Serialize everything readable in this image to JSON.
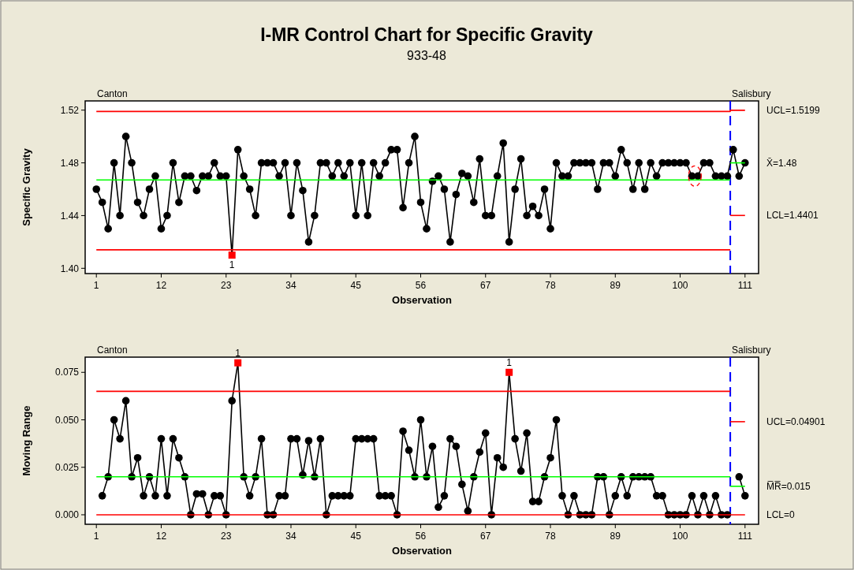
{
  "chart_data": [
    {
      "type": "line",
      "title": "I-MR Control Chart for Specific Gravity",
      "subtitle": "933-48",
      "xlabel": "Observation",
      "ylabel": "Specific Gravity",
      "marker": "circle",
      "line_style": "solid",
      "xlim": [
        -0.9,
        113.3
      ],
      "xticks": [
        1,
        12,
        23,
        34,
        45,
        56,
        67,
        78,
        89,
        100,
        111
      ],
      "ylim": [
        1.396,
        1.527
      ],
      "yticks": [
        {
          "value": 1.4,
          "label": "1.40"
        },
        {
          "value": 1.44,
          "label": "1.44"
        },
        {
          "value": 1.48,
          "label": "1.48"
        },
        {
          "value": 1.52,
          "label": "1.52"
        }
      ],
      "x": [
        1,
        2,
        3,
        4,
        5,
        6,
        7,
        8,
        9,
        10,
        11,
        12,
        13,
        14,
        15,
        16,
        17,
        18,
        19,
        20,
        21,
        22,
        23,
        24,
        25,
        26,
        27,
        28,
        29,
        30,
        31,
        32,
        33,
        34,
        35,
        36,
        37,
        38,
        39,
        40,
        41,
        42,
        43,
        44,
        45,
        46,
        47,
        48,
        49,
        50,
        51,
        52,
        53,
        54,
        55,
        56,
        57,
        58,
        59,
        60,
        61,
        62,
        63,
        64,
        65,
        66,
        67,
        68,
        69,
        70,
        71,
        72,
        73,
        74,
        75,
        76,
        77,
        78,
        79,
        80,
        81,
        82,
        83,
        84,
        85,
        86,
        87,
        88,
        89,
        90,
        91,
        92,
        93,
        94,
        95,
        96,
        97,
        98,
        99,
        100,
        101,
        102,
        103,
        104,
        105,
        106,
        107,
        108,
        109,
        110,
        111
      ],
      "series": [
        {
          "color": "#000000",
          "values": [
            1.46,
            1.45,
            1.43,
            1.48,
            1.44,
            1.5,
            1.48,
            1.45,
            1.44,
            1.46,
            1.47,
            1.43,
            1.44,
            1.48,
            1.45,
            1.47,
            1.47,
            1.459,
            1.47,
            1.47,
            1.48,
            1.47,
            1.47,
            1.41,
            1.49,
            1.47,
            1.46,
            1.44,
            1.48,
            1.48,
            1.48,
            1.47,
            1.48,
            1.44,
            1.48,
            1.459,
            1.42,
            1.44,
            1.48,
            1.48,
            1.47,
            1.48,
            1.47,
            1.48,
            1.44,
            1.48,
            1.44,
            1.48,
            1.47,
            1.48,
            1.49,
            1.49,
            1.446,
            1.48,
            1.5,
            1.45,
            1.43,
            1.466,
            1.47,
            1.46,
            1.42,
            1.456,
            1.472,
            1.47,
            1.45,
            1.483,
            1.44,
            1.44,
            1.47,
            1.495,
            1.42,
            1.46,
            1.483,
            1.44,
            1.447,
            1.44,
            1.46,
            1.43,
            1.48,
            1.47,
            1.47,
            1.48,
            1.48,
            1.48,
            1.48,
            1.46,
            1.48,
            1.48,
            1.47,
            1.49,
            1.48,
            1.46,
            1.48,
            1.46,
            1.48,
            1.47,
            1.48,
            1.48,
            1.48,
            1.48,
            1.48,
            1.47,
            1.47,
            1.48,
            1.48,
            1.47,
            1.47,
            1.47,
            1.49,
            1.47,
            1.48
          ]
        },
        {
          "type": "scatter",
          "marker": "square",
          "color": "#ff0000",
          "x": [
            24
          ],
          "values": [
            1.41
          ]
        },
        {
          "marker": "none",
          "color": "#00ff00",
          "x": [
            1,
            108.5
          ],
          "values": [
            1.467,
            1.467
          ]
        },
        {
          "marker": "none",
          "color": "#ff0000",
          "x": [
            1,
            108.5
          ],
          "values": [
            1.414,
            1.414
          ]
        },
        {
          "name": "UCL=1.5199",
          "marker": "none",
          "color": "#ff0000",
          "x": [
            1,
            108.5,
            108.5,
            111
          ],
          "values": [
            1.519,
            1.519,
            1.5199,
            1.5199
          ]
        },
        {
          "name": "X̄=1.48",
          "marker": "none",
          "color": "#00ff00",
          "x": [
            108.5,
            111
          ],
          "values": [
            1.48,
            1.48
          ]
        },
        {
          "name": "LCL=1.4401",
          "marker": "none",
          "color": "#ff0000",
          "x": [
            108.5,
            111
          ],
          "values": [
            1.4401,
            1.4401
          ]
        }
      ],
      "ref_lines": [
        {
          "axis": "x",
          "value": 108.5,
          "color": "#0000ff",
          "line_style": "dashed"
        }
      ],
      "annotations": [
        "Canton",
        "Salisbury",
        {
          "text": "1",
          "x": 24,
          "y": 1.41
        }
      ]
    },
    {
      "type": "line",
      "xlabel": "Observation",
      "ylabel": "Moving Range",
      "marker": "circle",
      "line_style": "solid",
      "xlim": [
        -0.9,
        113.3
      ],
      "xticks": [
        1,
        12,
        23,
        34,
        45,
        56,
        67,
        78,
        89,
        100,
        111
      ],
      "ylim": [
        -0.005,
        0.083
      ],
      "yticks": [
        {
          "value": 0,
          "label": "0.000"
        },
        {
          "value": 0.025,
          "label": "0.025"
        },
        {
          "value": 0.05,
          "label": "0.050"
        },
        {
          "value": 0.075,
          "label": "0.075"
        }
      ],
      "series": [
        {
          "color": "#000000",
          "x": [
            2,
            3,
            4,
            5,
            6,
            7,
            8,
            9,
            10,
            11,
            12,
            13,
            14,
            15,
            16,
            17,
            18,
            19,
            20,
            21,
            22,
            23,
            24,
            25,
            26,
            27,
            28,
            29,
            30,
            31,
            32,
            33,
            34,
            35,
            36,
            37,
            38,
            39,
            40,
            41,
            42,
            43,
            44,
            45,
            46,
            47,
            48,
            49,
            50,
            51,
            52,
            53,
            54,
            55,
            56,
            57,
            58,
            59,
            60,
            61,
            62,
            63,
            64,
            65,
            66,
            67,
            68,
            69,
            70,
            71,
            72,
            73,
            74,
            75,
            76,
            77,
            78,
            79,
            80,
            81,
            82,
            83,
            84,
            85,
            86,
            87,
            88,
            89,
            90,
            91,
            92,
            93,
            94,
            95,
            96,
            97,
            98,
            99,
            100,
            101,
            102,
            103,
            104,
            105,
            106,
            107,
            108,
            109,
            110,
            111
          ],
          "values": [
            0.01,
            0.02,
            0.05,
            0.04,
            0.06,
            0.02,
            0.03,
            0.01,
            0.02,
            0.01,
            0.04,
            0.01,
            0.04,
            0.03,
            0.02,
            0,
            0.011,
            0.011,
            0,
            0.01,
            0.01,
            0,
            0.06,
            0.08,
            0.02,
            0.01,
            0.02,
            0.04,
            0,
            0,
            0.01,
            0.01,
            0.04,
            0.04,
            0.021,
            0.039,
            0.02,
            0.04,
            0,
            0.01,
            0.01,
            0.01,
            0.01,
            0.04,
            0.04,
            0.04,
            0.04,
            0.01,
            0.01,
            0.01,
            0,
            0.044,
            0.034,
            0.02,
            0.05,
            0.02,
            0.036,
            0.004,
            0.01,
            0.04,
            0.036,
            0.016,
            0.002,
            0.02,
            0.033,
            0.043,
            0,
            0.03,
            0.025,
            0.075,
            0.04,
            0.023,
            0.043,
            0.007,
            0.007,
            0.02,
            0.03,
            0.05,
            0.01,
            0,
            0.01,
            0,
            0,
            0,
            0.02,
            0.02,
            0,
            0.01,
            0.02,
            0.01,
            0.02,
            0.02,
            0.02,
            0.02,
            0.01,
            0.01,
            0,
            0,
            0,
            0,
            0.01,
            0,
            0.01,
            0,
            0.01,
            0,
            0,
            null,
            0.02,
            0.01
          ]
        },
        {
          "type": "scatter",
          "marker": "square",
          "color": "#ff0000",
          "x": [
            25,
            71
          ],
          "values": [
            0.08,
            0.075
          ]
        },
        {
          "marker": "none",
          "color": "#ff0000",
          "x": [
            1,
            108.5
          ],
          "values": [
            0.065,
            0.065
          ]
        },
        {
          "marker": "none",
          "color": "#00ff00",
          "x": [
            1,
            108.5
          ],
          "values": [
            0.02,
            0.02
          ]
        },
        {
          "name": "UCL=0.04901",
          "marker": "none",
          "color": "#ff0000",
          "x": [
            108.5,
            111
          ],
          "values": [
            0.04901,
            0.04901
          ]
        },
        {
          "name": "M̅R̅=0.015",
          "marker": "none",
          "color": "#00ff00",
          "x": [
            108.5,
            111
          ],
          "values": [
            0.015,
            0.015
          ]
        },
        {
          "name": "LCL=0",
          "marker": "none",
          "color": "#ff0000",
          "x": [
            1,
            111
          ],
          "values": [
            0,
            0
          ]
        }
      ],
      "ref_lines": [
        {
          "axis": "x",
          "value": 108.5,
          "color": "#0000ff",
          "line_style": "dashed"
        }
      ],
      "annotations": [
        "Canton",
        "Salisbury",
        {
          "text": "1",
          "x": 25,
          "y": 0.08
        },
        {
          "text": "1",
          "x": 71,
          "y": 0.075
        }
      ]
    }
  ]
}
